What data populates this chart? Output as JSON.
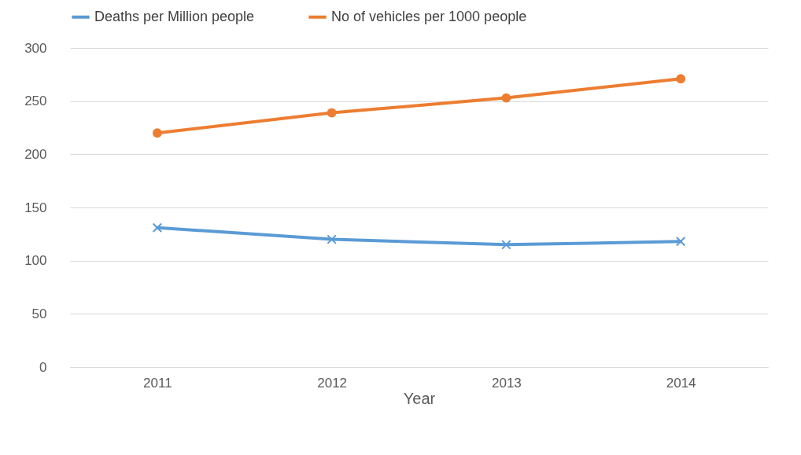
{
  "chart_data": {
    "type": "line",
    "xlabel": "Year",
    "categories": [
      "2011",
      "2012",
      "2013",
      "2014"
    ],
    "series": [
      {
        "name": "Deaths per Million people",
        "color": "#5b9bd5",
        "marker": "cross",
        "values": [
          131,
          120,
          115,
          118
        ]
      },
      {
        "name": "No of vehicles per 1000 people",
        "color": "#ed7d31",
        "marker": "circle",
        "values": [
          220,
          239,
          253,
          271
        ]
      }
    ],
    "ylim": [
      0,
      300
    ],
    "yticks": [
      0,
      50,
      100,
      150,
      200,
      250,
      300
    ],
    "grid": "y",
    "legend": "top",
    "line_style": "solid"
  }
}
